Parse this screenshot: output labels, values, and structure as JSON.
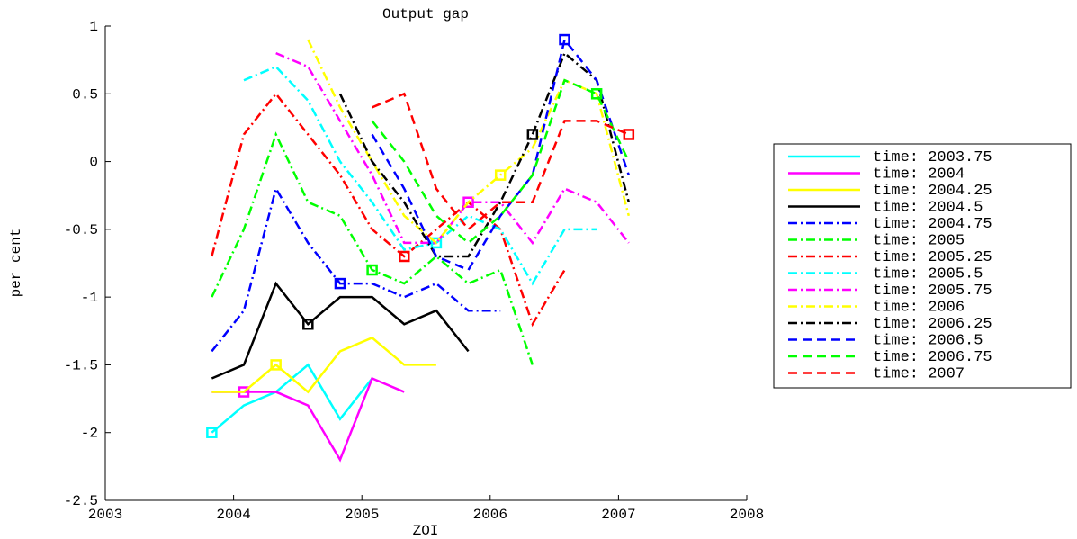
{
  "chart_data": {
    "type": "line",
    "title": "Output gap",
    "xlabel": "ZOI",
    "ylabel": "per cent",
    "x": [
      2003.83,
      2004.08,
      2004.33,
      2004.58,
      2004.83,
      2005.08,
      2005.33,
      2005.58,
      2005.83,
      2006.08,
      2006.33,
      2006.58,
      2006.83,
      2007.08
    ],
    "xlim": [
      2003,
      2008
    ],
    "xticks": [
      2003,
      2004,
      2005,
      2006,
      2007,
      2008
    ],
    "ylim": [
      -2.5,
      1
    ],
    "yticks": [
      -2.5,
      -2,
      -1.5,
      -1,
      -0.5,
      0,
      0.5,
      1
    ],
    "legend": "right",
    "series": [
      {
        "name": "time: 2003.75",
        "color": "#00ffff",
        "dash": "solid",
        "marker_index": 0,
        "values": [
          -2,
          -1.8,
          -1.7,
          -1.5,
          -1.9,
          -1.6,
          null,
          null,
          null,
          null,
          null,
          null,
          null,
          null
        ]
      },
      {
        "name": "time: 2004",
        "color": "#ff00ff",
        "dash": "solid",
        "marker_index": 1,
        "values": [
          -1.7,
          -1.7,
          -1.7,
          -1.8,
          -2.2,
          -1.6,
          -1.7,
          null,
          null,
          null,
          null,
          null,
          null,
          null
        ]
      },
      {
        "name": "time: 2004.25",
        "color": "#ffff00",
        "dash": "solid",
        "marker_index": 2,
        "values": [
          -1.7,
          -1.7,
          -1.5,
          -1.7,
          -1.4,
          -1.3,
          -1.5,
          -1.5,
          null,
          null,
          null,
          null,
          null,
          null
        ]
      },
      {
        "name": "time: 2004.5",
        "color": "#000000",
        "dash": "solid",
        "marker_index": 3,
        "values": [
          -1.6,
          -1.5,
          -0.9,
          -1.2,
          -1.0,
          -1.0,
          -1.2,
          -1.1,
          -1.4,
          null,
          null,
          null,
          null,
          null
        ]
      },
      {
        "name": "time: 2004.75",
        "color": "#0000ff",
        "dash": "dashdot",
        "marker_index": 4,
        "values": [
          -1.4,
          -1.1,
          -0.2,
          -0.6,
          -0.9,
          -0.9,
          -1.0,
          -0.9,
          -1.1,
          -1.1,
          null,
          null,
          null,
          null
        ]
      },
      {
        "name": "time: 2005",
        "color": "#00ff00",
        "dash": "dashdot",
        "marker_index": 5,
        "values": [
          -1.0,
          -0.5,
          0.2,
          -0.3,
          -0.4,
          -0.8,
          -0.9,
          -0.7,
          -0.9,
          -0.8,
          -1.5,
          null,
          null,
          null
        ]
      },
      {
        "name": "time: 2005.25",
        "color": "#ff0000",
        "dash": "dashdot",
        "marker_index": 6,
        "values": [
          -0.7,
          0.2,
          0.5,
          0.2,
          -0.1,
          -0.5,
          -0.7,
          -0.5,
          -0.3,
          -0.5,
          -1.2,
          -0.8,
          null,
          null
        ]
      },
      {
        "name": "time: 2005.5",
        "color": "#00ffff",
        "dash": "dashdot",
        "marker_index": 7,
        "values": [
          null,
          0.6,
          0.7,
          0.45,
          0.0,
          -0.3,
          -0.65,
          -0.6,
          -0.4,
          -0.5,
          -0.9,
          -0.5,
          -0.5,
          null
        ]
      },
      {
        "name": "time: 2005.75",
        "color": "#ff00ff",
        "dash": "dashdot",
        "marker_index": 8,
        "values": [
          null,
          null,
          0.8,
          0.7,
          0.3,
          -0.1,
          -0.6,
          -0.6,
          -0.3,
          -0.3,
          -0.6,
          -0.2,
          -0.3,
          -0.6
        ]
      },
      {
        "name": "time: 2006",
        "color": "#ffff00",
        "dash": "dashdot",
        "marker_index": 9,
        "values": [
          null,
          null,
          null,
          0.9,
          0.4,
          0.0,
          -0.4,
          -0.6,
          -0.3,
          -0.1,
          0.1,
          0.6,
          0.5,
          -0.4
        ]
      },
      {
        "name": "time: 2006.25",
        "color": "#000000",
        "dash": "dashdot",
        "marker_index": 10,
        "values": [
          null,
          null,
          null,
          null,
          0.5,
          0.0,
          -0.3,
          -0.7,
          -0.7,
          -0.3,
          0.2,
          0.8,
          0.6,
          -0.3
        ]
      },
      {
        "name": "time: 2006.5",
        "color": "#0000ff",
        "dash": "dashed",
        "marker_index": 11,
        "values": [
          null,
          null,
          null,
          null,
          null,
          0.2,
          -0.2,
          -0.7,
          -0.8,
          -0.4,
          -0.1,
          0.9,
          0.6,
          -0.1
        ]
      },
      {
        "name": "time: 2006.75",
        "color": "#00ff00",
        "dash": "dashed",
        "marker_index": 12,
        "values": [
          null,
          null,
          null,
          null,
          null,
          0.3,
          0.0,
          -0.4,
          -0.6,
          -0.4,
          -0.1,
          0.6,
          0.5,
          0.0
        ]
      },
      {
        "name": "time: 2007",
        "color": "#ff0000",
        "dash": "dashed",
        "marker_index": 13,
        "values": [
          null,
          null,
          null,
          null,
          null,
          0.4,
          0.5,
          -0.2,
          -0.5,
          -0.3,
          -0.3,
          0.3,
          0.3,
          0.2
        ]
      }
    ]
  }
}
